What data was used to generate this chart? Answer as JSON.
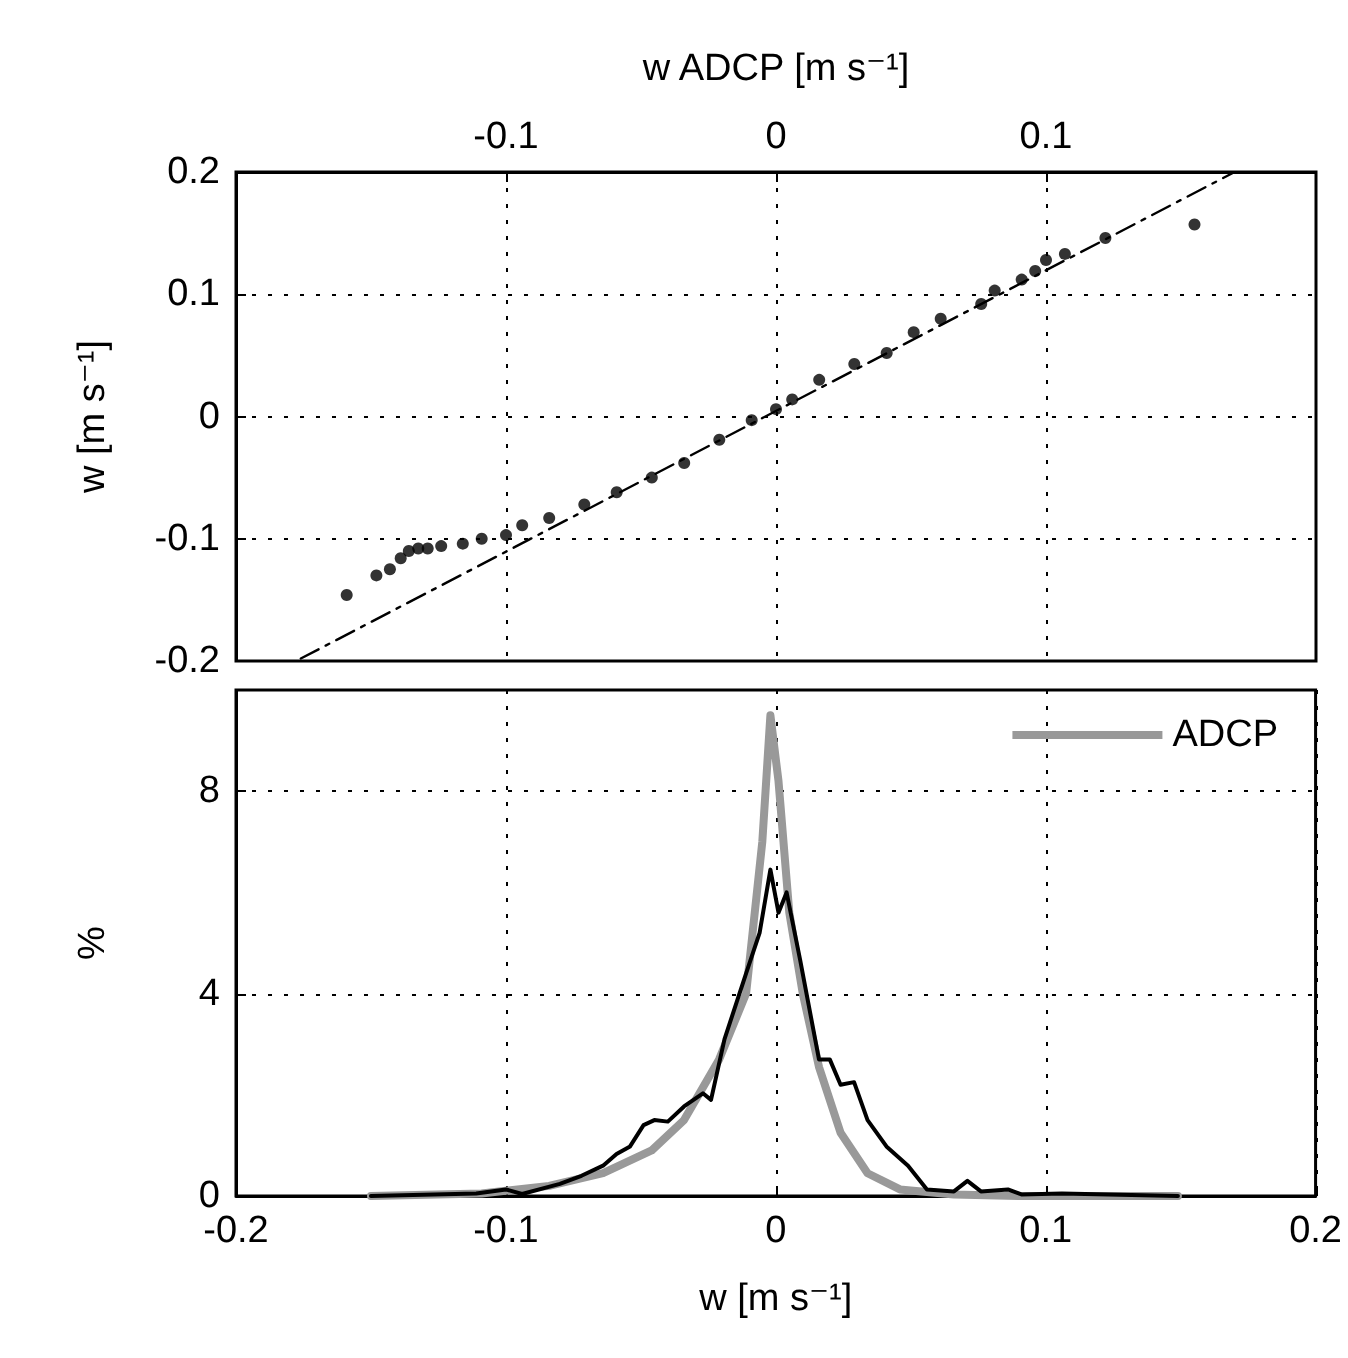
{
  "chart_data": [
    {
      "type": "scatter",
      "xlabel": "w ADCP [m s⁻¹]",
      "ylabel": "w [m s⁻¹]",
      "xlim": [
        -0.2,
        0.2
      ],
      "xticks": [
        -0.1,
        0,
        0.1
      ],
      "ylim": [
        -0.2,
        0.2
      ],
      "yticks": [
        -0.2,
        -0.1,
        0,
        0.1,
        0.2
      ],
      "grid": true,
      "marker": "circle",
      "legend": false,
      "series": [
        {
          "color": "#000000",
          "x": [
            -0.159,
            -0.148,
            -0.143,
            -0.139,
            -0.136,
            -0.1325,
            -0.129,
            -0.124,
            -0.116,
            -0.109,
            -0.1,
            -0.094,
            -0.084,
            -0.071,
            -0.059,
            -0.046,
            -0.034,
            -0.021,
            -0.009,
            0,
            0.006,
            0.016,
            0.029,
            0.041,
            0.051,
            0.061,
            0.076,
            0.081,
            0.091,
            0.096,
            0.1,
            0.107,
            0.122,
            0.155
          ],
          "values": [
            -0.146,
            -0.13,
            -0.125,
            -0.116,
            -0.11,
            -0.108,
            -0.108,
            -0.106,
            -0.104,
            -0.1,
            -0.097,
            -0.089,
            -0.083,
            -0.072,
            -0.062,
            -0.05,
            -0.038,
            -0.019,
            -0.003,
            0.006,
            0.014,
            0.03,
            0.043,
            0.052,
            0.069,
            0.08,
            0.092,
            0.103,
            0.112,
            0.119,
            0.128,
            0.133,
            0.146,
            0.157
          ]
        },
        {
          "type": "line",
          "color": "#000000",
          "line_style": "dashed",
          "marker": "none",
          "x": [
            -0.176,
            0.169
          ],
          "values": [
            -0.198,
            0.199
          ]
        }
      ]
    },
    {
      "type": "line",
      "xlabel": "w [m s⁻¹]",
      "ylabel": "%",
      "xlim": [
        -0.2,
        0.2
      ],
      "xticks": [
        -0.2,
        -0.1,
        0,
        0.1,
        0.2
      ],
      "ylim": [
        0,
        10
      ],
      "yticks": [
        0,
        4,
        8
      ],
      "grid": true,
      "marker": "none",
      "legend": "top right",
      "series": [
        {
          "name": "ADCP",
          "color": "#999999",
          "x": [
            -0.15,
            -0.109,
            -0.084,
            -0.064,
            -0.046,
            -0.034,
            -0.021,
            -0.011,
            -0.005,
            -0.002,
            0.001,
            0.005,
            0.01,
            0.016,
            0.024,
            0.034,
            0.046,
            0.066,
            0.091,
            0.149
          ],
          "values": [
            0,
            0.05,
            0.2,
            0.45,
            0.9,
            1.5,
            2.7,
            4.0,
            7.0,
            9.5,
            8.2,
            5.6,
            4.0,
            2.55,
            1.25,
            0.45,
            0.13,
            0.03,
            0,
            0
          ]
        },
        {
          "color": "#000000",
          "x": [
            -0.15,
            -0.111,
            -0.1,
            -0.094,
            -0.08,
            -0.072,
            -0.064,
            -0.059,
            -0.054,
            -0.049,
            -0.045,
            -0.04,
            -0.034,
            -0.027,
            -0.024,
            -0.019,
            -0.011,
            -0.006,
            -0.002,
            0.001,
            0.004,
            0.009,
            0.016,
            0.02,
            0.024,
            0.029,
            0.034,
            0.041,
            0.049,
            0.056,
            0.066,
            0.071,
            0.076,
            0.086,
            0.091,
            0.106,
            0.149
          ],
          "values": [
            0,
            0.05,
            0.13,
            0.04,
            0.24,
            0.4,
            0.6,
            0.83,
            0.98,
            1.4,
            1.5,
            1.47,
            1.77,
            2.03,
            1.9,
            3.1,
            4.4,
            5.2,
            6.45,
            5.6,
            6.0,
            4.67,
            2.7,
            2.7,
            2.2,
            2.25,
            1.5,
            0.98,
            0.6,
            0.13,
            0.09,
            0.3,
            0.09,
            0.13,
            0.03,
            0.05,
            0
          ]
        }
      ]
    }
  ]
}
